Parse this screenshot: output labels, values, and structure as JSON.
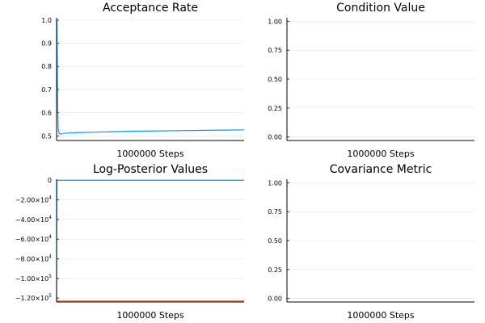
{
  "colors": {
    "series_primary": "#009af9",
    "series_secondary": "#e26f46"
  },
  "chart_data": [
    {
      "type": "line",
      "title": "Acceptance Rate",
      "xlabel": "1000000 Steps",
      "ylabel": "",
      "xlim": [
        0,
        1000000
      ],
      "ylim": [
        0.48,
        1.01
      ],
      "grid": true,
      "yticks": [
        0.5,
        0.6,
        0.7,
        0.8,
        0.9,
        1.0
      ],
      "ytick_labels": [
        "0.5",
        "0.6",
        "0.7",
        "0.8",
        "0.9",
        "1.0"
      ],
      "series": [
        {
          "color": "#009af9",
          "x": [
            0,
            2000,
            4000,
            6000,
            8000,
            10000,
            15000,
            20000,
            30000,
            50000,
            75000,
            100000,
            200000,
            300000,
            400000,
            500000,
            600000,
            700000,
            800000,
            900000,
            1000000
          ],
          "y": [
            1.0,
            1.0,
            0.8,
            0.62,
            0.54,
            0.52,
            0.51,
            0.508,
            0.509,
            0.512,
            0.513,
            0.514,
            0.516,
            0.518,
            0.52,
            0.521,
            0.522,
            0.523,
            0.524,
            0.525,
            0.526
          ]
        }
      ]
    },
    {
      "type": "line",
      "title": "Condition Value",
      "xlabel": "1000000 Steps",
      "ylabel": "",
      "xlim": [
        0,
        1000000
      ],
      "ylim": [
        -0.03,
        1.03
      ],
      "grid": true,
      "yticks": [
        0.0,
        0.25,
        0.5,
        0.75,
        1.0
      ],
      "ytick_labels": [
        "0.00",
        "0.25",
        "0.50",
        "0.75",
        "1.00"
      ],
      "series": []
    },
    {
      "type": "line",
      "title": "Log-Posterior Values",
      "xlabel": "1000000 Steps",
      "ylabel": "",
      "xlim": [
        0,
        1000000
      ],
      "ylim": [
        -124000,
        1000
      ],
      "grid": true,
      "yticks": [
        0,
        -20000,
        -40000,
        -60000,
        -80000,
        -100000,
        -120000
      ],
      "ytick_labels": [
        {
          "base": "0",
          "sup": ""
        },
        {
          "base": "−2.00×10",
          "sup": "4"
        },
        {
          "base": "−4.00×10",
          "sup": "4"
        },
        {
          "base": "−6.00×10",
          "sup": "4"
        },
        {
          "base": "−8.00×10",
          "sup": "4"
        },
        {
          "base": "−1.00×10",
          "sup": "5"
        },
        {
          "base": "−1.20×10",
          "sup": "5"
        }
      ],
      "series": [
        {
          "color": "#009af9",
          "x": [
            0,
            500,
            1000,
            2000,
            5000,
            100000,
            500000,
            1000000
          ],
          "y": [
            -123000,
            -60000,
            -500,
            -30,
            -20,
            -20,
            -20,
            -20
          ]
        },
        {
          "color": "#e26f46",
          "x": [
            0,
            1000000
          ],
          "y": [
            -123000,
            -123000
          ]
        }
      ]
    },
    {
      "type": "line",
      "title": "Covariance Metric",
      "xlabel": "1000000 Steps",
      "ylabel": "",
      "xlim": [
        0,
        1000000
      ],
      "ylim": [
        -0.03,
        1.03
      ],
      "grid": true,
      "yticks": [
        0.0,
        0.25,
        0.5,
        0.75,
        1.0
      ],
      "ytick_labels": [
        "0.00",
        "0.25",
        "0.50",
        "0.75",
        "1.00"
      ],
      "series": []
    }
  ]
}
